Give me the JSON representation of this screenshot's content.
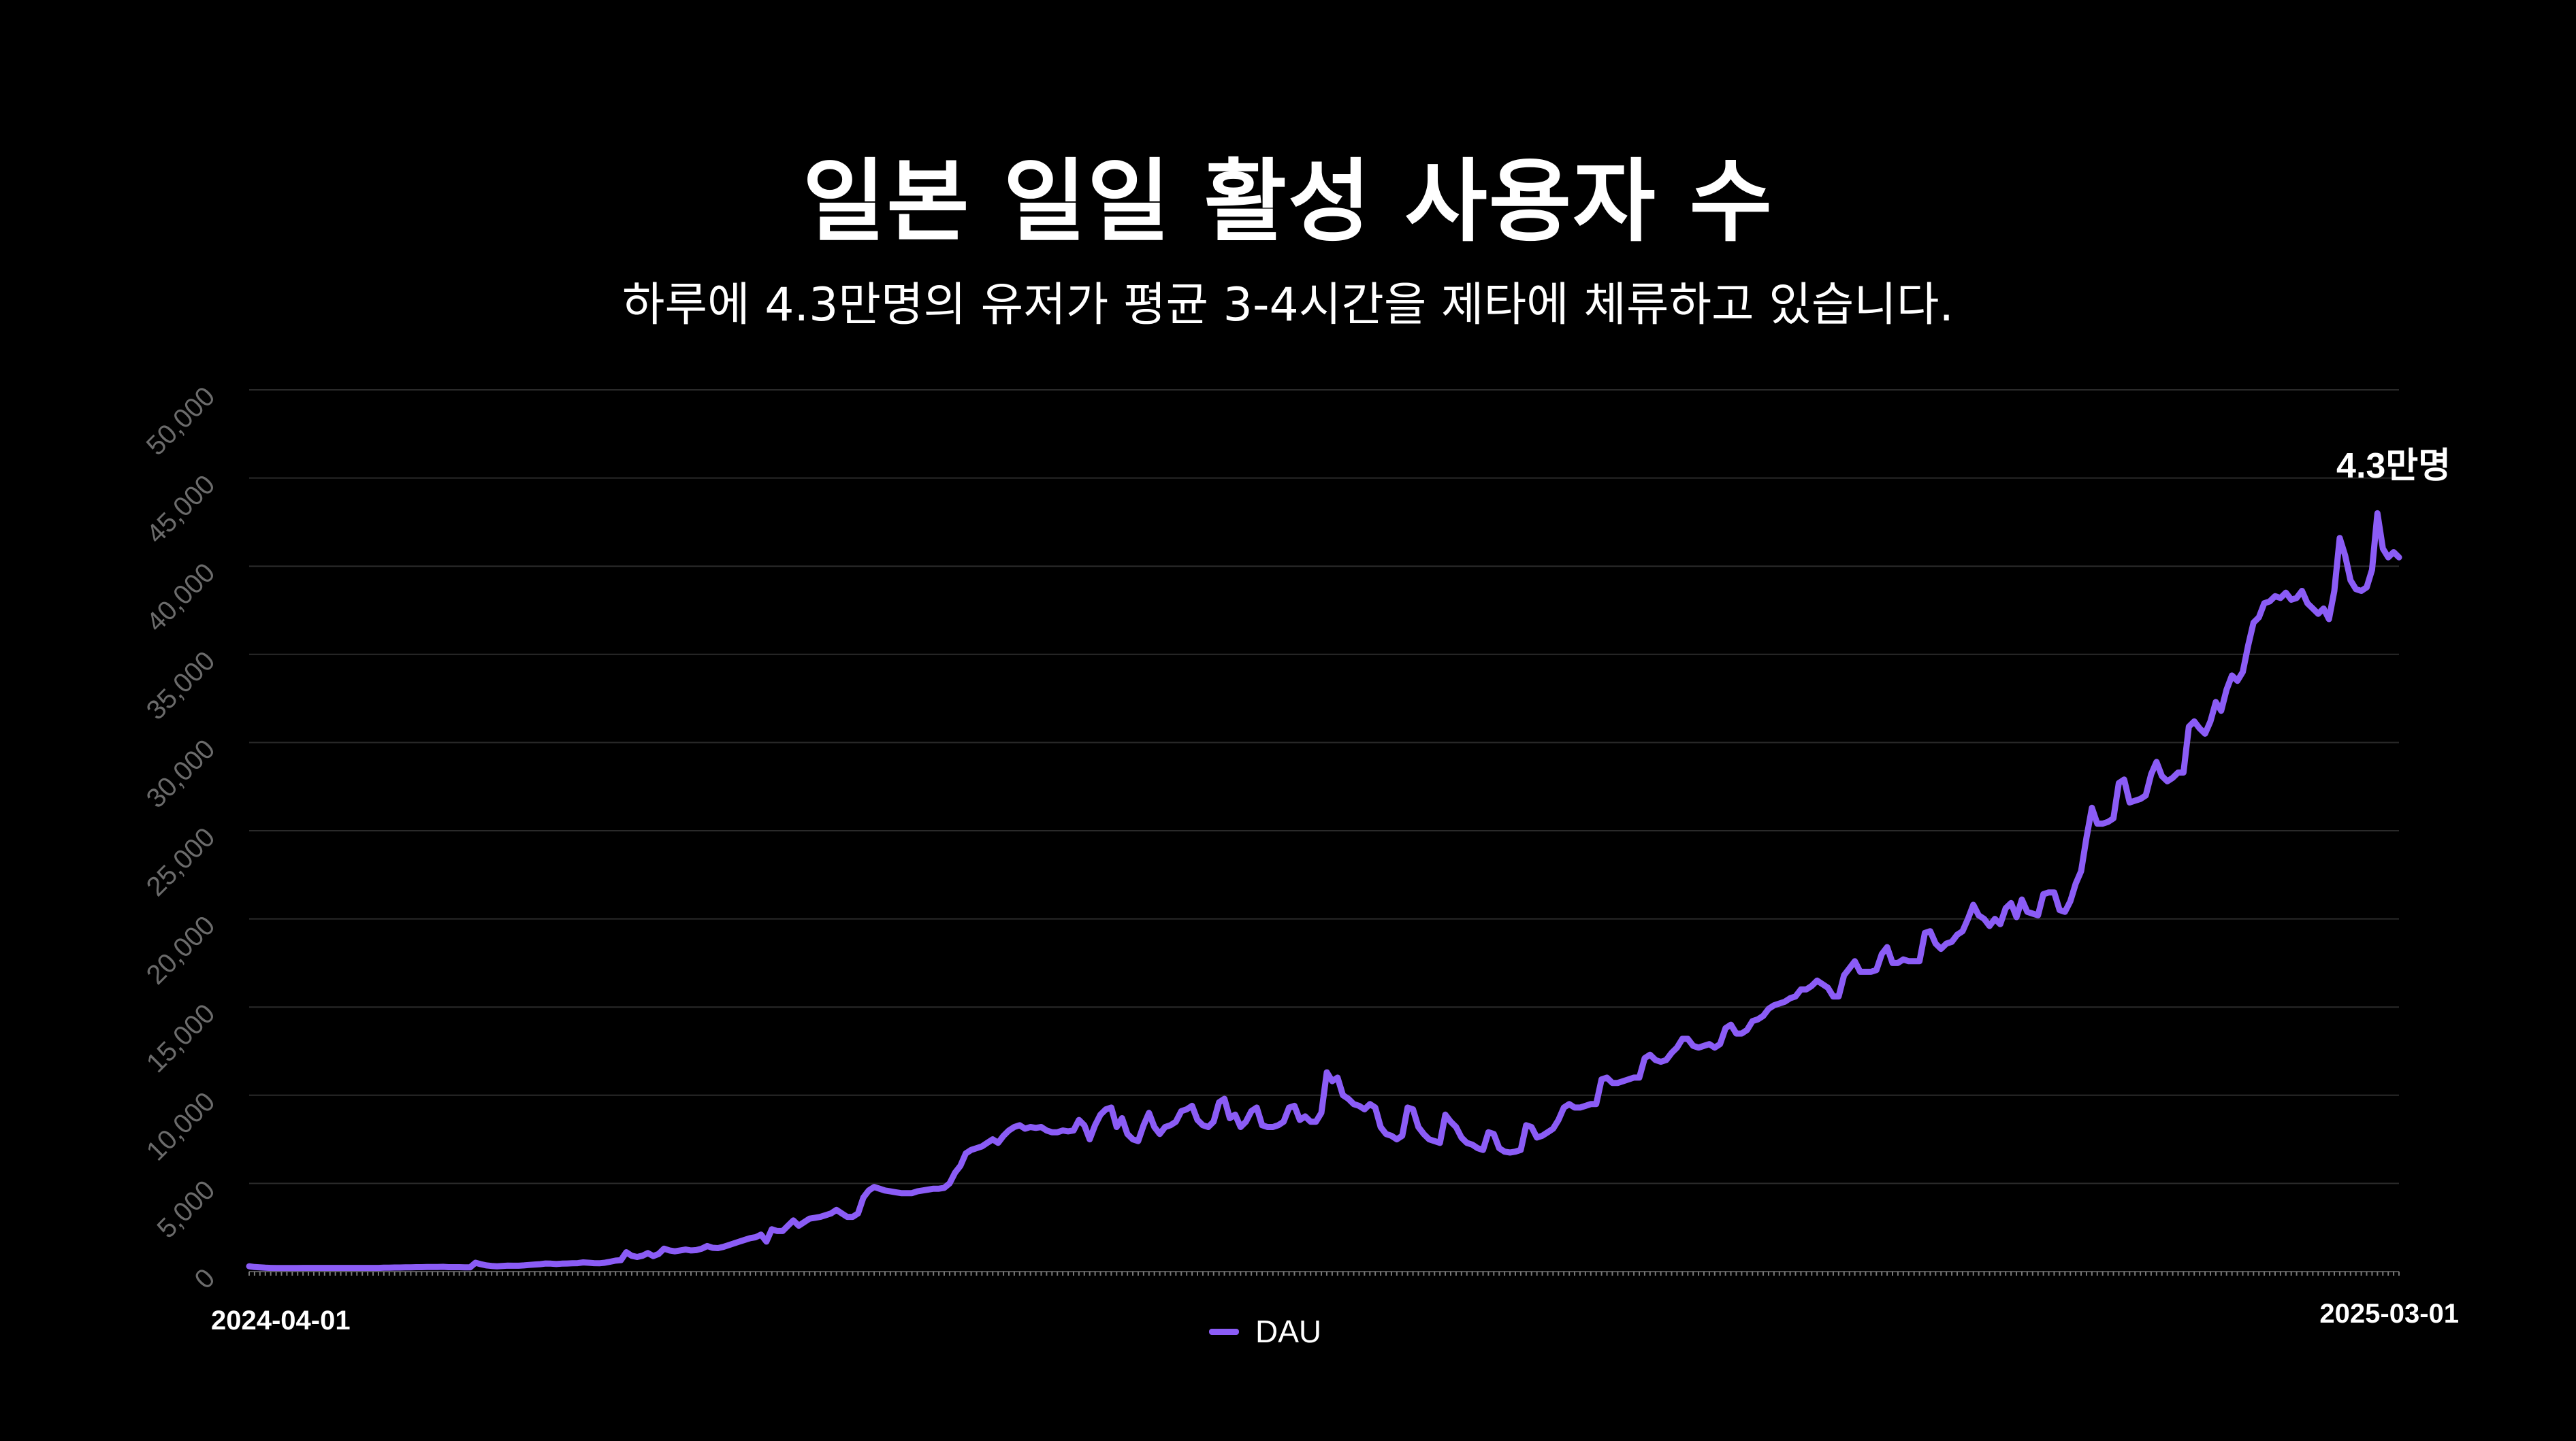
{
  "header": {
    "title": "일본 일일 활성 사용자 수",
    "subtitle": "하루에 4.3만명의 유저가 평균 3-4시간을 제타에 체류하고 있습니다."
  },
  "colors": {
    "background": "#000000",
    "line": "#8b5cf6",
    "grid": "#2a2a2a",
    "y_tick": "#6b6b6b",
    "x_tick": "#ffffff"
  },
  "chart_data": {
    "type": "line",
    "title": "",
    "xlabel": "",
    "ylabel": "",
    "ylim": [
      0,
      50000
    ],
    "y_ticks": [
      0,
      5000,
      10000,
      15000,
      20000,
      25000,
      30000,
      35000,
      40000,
      45000,
      50000
    ],
    "y_tick_labels": [
      "0",
      "5,000",
      "10,000",
      "15,000",
      "20,000",
      "25,000",
      "30,000",
      "35,000",
      "40,000",
      "45,000",
      "50,000"
    ],
    "x_range": [
      "2024-04-01",
      "2025-03-01"
    ],
    "x_tick_labels": [
      "2024-04-01",
      "2025-03-01"
    ],
    "grid": "horizontal",
    "legend": "bottom-center",
    "annotation": "4.3만명",
    "series": [
      {
        "name": "DAU",
        "start_date": "2024-04-01",
        "step_days": 1,
        "values": [
          300,
          260,
          240,
          220,
          210,
          200,
          200,
          200,
          200,
          200,
          210,
          210,
          210,
          210,
          210,
          210,
          210,
          210,
          210,
          210,
          210,
          210,
          210,
          210,
          210,
          220,
          220,
          230,
          230,
          240,
          240,
          250,
          250,
          260,
          260,
          260,
          270,
          250,
          250,
          250,
          240,
          240,
          500,
          420,
          350,
          320,
          300,
          320,
          340,
          330,
          330,
          350,
          380,
          400,
          420,
          460,
          450,
          430,
          450,
          460,
          470,
          480,
          520,
          500,
          480,
          470,
          500,
          560,
          620,
          650,
          1100,
          900,
          830,
          900,
          1050,
          880,
          1000,
          1300,
          1200,
          1150,
          1200,
          1250,
          1200,
          1220,
          1300,
          1450,
          1350,
          1330,
          1400,
          1500,
          1600,
          1700,
          1800,
          1900,
          1950,
          2100,
          1700,
          2400,
          2300,
          2300,
          2600,
          2900,
          2600,
          2800,
          3000,
          3050,
          3100,
          3200,
          3300,
          3500,
          3300,
          3100,
          3100,
          3300,
          4200,
          4600,
          4800,
          4700,
          4600,
          4550,
          4500,
          4450,
          4450,
          4450,
          4550,
          4600,
          4650,
          4700,
          4700,
          4750,
          5000,
          5600,
          6000,
          6700,
          6900,
          7000,
          7100,
          7300,
          7500,
          7300,
          7700,
          8000,
          8200,
          8300,
          8100,
          8200,
          8150,
          8200,
          8000,
          7900,
          7900,
          8000,
          7950,
          8000,
          8600,
          8300,
          7500,
          8300,
          8900,
          9200,
          9300,
          8200,
          8700,
          7800,
          7500,
          7400,
          8300,
          9000,
          8200,
          7800,
          8200,
          8300,
          8500,
          9100,
          9200,
          9400,
          8600,
          8300,
          8200,
          8500,
          9600,
          9800,
          8700,
          8900,
          8200,
          8500,
          9100,
          9300,
          8300,
          8200,
          8200,
          8300,
          8500,
          9300,
          9400,
          8600,
          8800,
          8500,
          8500,
          9000,
          11300,
          10800,
          11000,
          10000,
          9800,
          9500,
          9400,
          9200,
          9500,
          9300,
          8200,
          7800,
          7700,
          7500,
          7700,
          9300,
          9200,
          8200,
          7800,
          7500,
          7400,
          7300,
          8900,
          8500,
          8200,
          7600,
          7300,
          7200,
          7000,
          6900,
          7900,
          7800,
          7000,
          6800,
          6750,
          6800,
          6900,
          8300,
          8200,
          7600,
          7700,
          7900,
          8100,
          8600,
          9300,
          9500,
          9300,
          9300,
          9400,
          9500,
          9500,
          10900,
          11000,
          10700,
          10700,
          10800,
          10900,
          11000,
          11000,
          12100,
          12300,
          12000,
          11900,
          12000,
          12400,
          12700,
          13200,
          13200,
          12800,
          12700,
          12800,
          12900,
          12700,
          12900,
          13800,
          14000,
          13500,
          13500,
          13700,
          14200,
          14300,
          14500,
          14900,
          15100,
          15200,
          15300,
          15500,
          15600,
          16000,
          16000,
          16200,
          16500,
          16300,
          16100,
          15600,
          15600,
          16800,
          17200,
          17600,
          17000,
          17000,
          17000,
          17100,
          18000,
          18400,
          17500,
          17500,
          17700,
          17600,
          17600,
          17600,
          19200,
          19300,
          18600,
          18300,
          18600,
          18700,
          19100,
          19300,
          20000,
          20800,
          20200,
          20000,
          19600,
          20000,
          19700,
          20600,
          20900,
          20100,
          21100,
          20400,
          20300,
          20200,
          21400,
          21500,
          21500,
          20500,
          20400,
          21000,
          22000,
          22700,
          24600,
          26300,
          25400,
          25400,
          25500,
          25700,
          27700,
          27900,
          26600,
          26700,
          26800,
          27000,
          28200,
          28900,
          28100,
          27800,
          28000,
          28300,
          28300,
          30900,
          31200,
          30800,
          30500,
          31200,
          32300,
          31800,
          33000,
          33800,
          33500,
          34000,
          35500,
          36800,
          37100,
          37900,
          38000,
          38300,
          38200,
          38500,
          38100,
          38200,
          38600,
          37900,
          37600,
          37300,
          37600,
          37000,
          38600,
          41600,
          40600,
          39200,
          38700,
          38600,
          38800,
          39800,
          43000,
          41000,
          40500,
          40800,
          40500
        ]
      }
    ]
  }
}
